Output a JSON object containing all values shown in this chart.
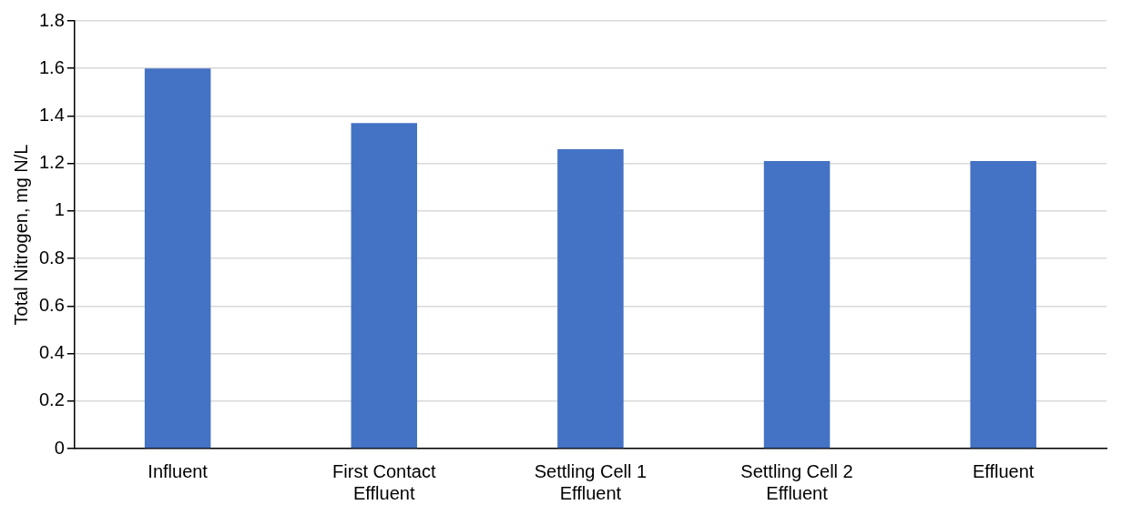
{
  "chart_data": {
    "type": "bar",
    "ylabel": "Total Nitrogen, mg N/L",
    "categories": [
      "Influent",
      "First Contact Effluent",
      "Settling Cell 1 Effluent",
      "Settling Cell 2 Effluent",
      "Effluent"
    ],
    "values": [
      1.6,
      1.37,
      1.26,
      1.21,
      1.21
    ],
    "color": "#4472c4",
    "ylim": [
      0,
      1.8
    ],
    "yticks": [
      0,
      0.2,
      0.4,
      0.6,
      0.8,
      1,
      1.2,
      1.4,
      1.6,
      1.8
    ],
    "grid": "y",
    "legend": false
  }
}
